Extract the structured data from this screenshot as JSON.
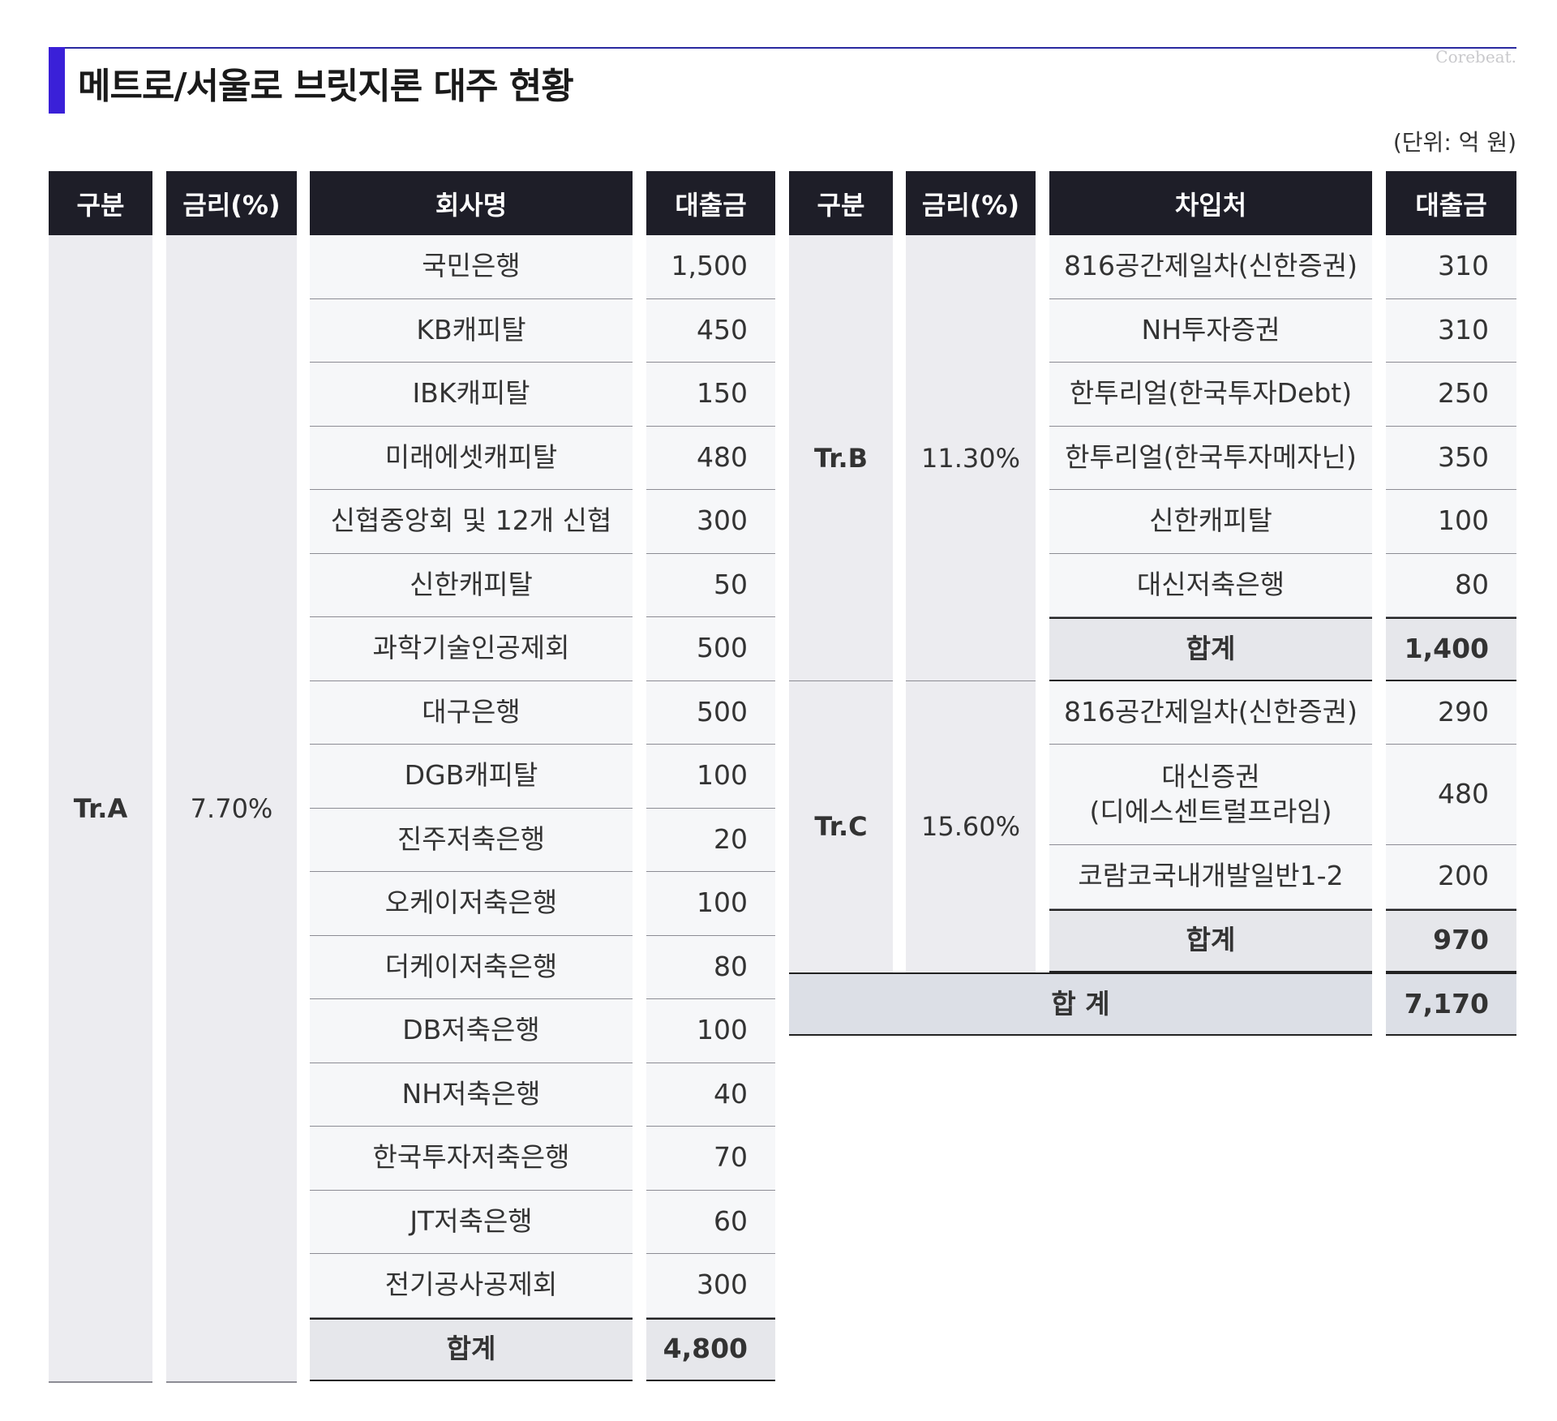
{
  "title": "메트로/서울로 브릿지론 대주 현황",
  "watermark": "Corebeat.",
  "unit": "(단위: 억 원)",
  "colors": {
    "accent": "#3a20d8",
    "header_bg": "#1e1e28",
    "group_bg": "#ececf0",
    "cell_bg": "#f6f7f9"
  },
  "chart_data": {
    "type": "table",
    "headers_left": [
      "구분",
      "금리(%)",
      "회사명",
      "대출금"
    ],
    "headers_right": [
      "구분",
      "금리(%)",
      "차입처",
      "대출금"
    ],
    "tranches": [
      {
        "name": "Tr.A",
        "rate": "7.70%",
        "rows": [
          {
            "name": "국민은행",
            "value": "1,500"
          },
          {
            "name": "KB캐피탈",
            "value": "450"
          },
          {
            "name": "IBK캐피탈",
            "value": "150"
          },
          {
            "name": "미래에셋캐피탈",
            "value": "480"
          },
          {
            "name": "신협중앙회 및 12개 신협",
            "value": "300"
          },
          {
            "name": "신한캐피탈",
            "value": "50"
          },
          {
            "name": "과학기술인공제회",
            "value": "500"
          },
          {
            "name": "대구은행",
            "value": "500"
          },
          {
            "name": "DGB캐피탈",
            "value": "100"
          },
          {
            "name": "진주저축은행",
            "value": "20"
          },
          {
            "name": "오케이저축은행",
            "value": "100"
          },
          {
            "name": "더케이저축은행",
            "value": "80"
          },
          {
            "name": "DB저축은행",
            "value": "100"
          },
          {
            "name": "NH저축은행",
            "value": "40"
          },
          {
            "name": "한국투자저축은행",
            "value": "70"
          },
          {
            "name": "JT저축은행",
            "value": "60"
          },
          {
            "name": "전기공사공제회",
            "value": "300"
          }
        ],
        "subtotal_label": "합계",
        "subtotal": "4,800"
      },
      {
        "name": "Tr.B",
        "rate": "11.30%",
        "rows": [
          {
            "name": "816공간제일차(신한증권)",
            "value": "310"
          },
          {
            "name": "NH투자증권",
            "value": "310"
          },
          {
            "name": "한투리얼(한국투자Debt)",
            "value": "250"
          },
          {
            "name": "한투리얼(한국투자메자닌)",
            "value": "350"
          },
          {
            "name": "신한캐피탈",
            "value": "100"
          },
          {
            "name": "대신저축은행",
            "value": "80"
          }
        ],
        "subtotal_label": "합계",
        "subtotal": "1,400"
      },
      {
        "name": "Tr.C",
        "rate": "15.60%",
        "rows": [
          {
            "name": "816공간제일차(신한증권)",
            "value": "290"
          },
          {
            "name": "대신증권\n(디에스센트럴프라임)",
            "value": "480"
          },
          {
            "name": "코람코국내개발일반1-2",
            "value": "200"
          }
        ],
        "subtotal_label": "합계",
        "subtotal": "970"
      }
    ],
    "grand_total_label": "합 계",
    "grand_total": "7,170"
  }
}
